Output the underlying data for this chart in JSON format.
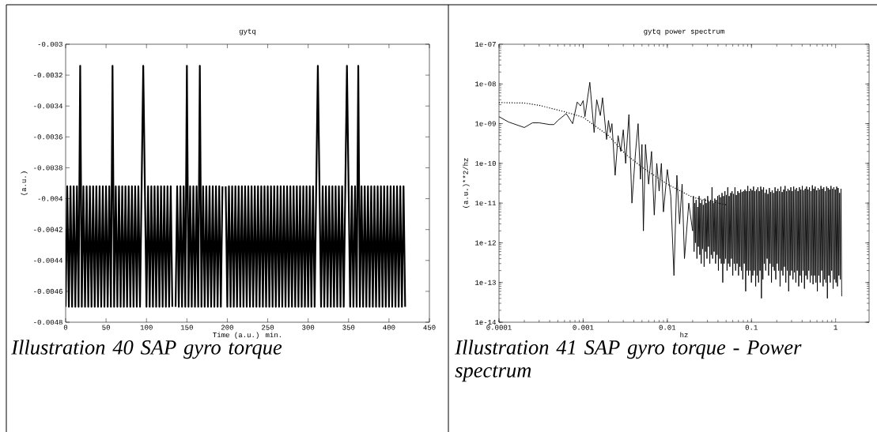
{
  "chart_data": [
    {
      "type": "line",
      "title": "gytq",
      "xlabel": "Time (a.u.) min.",
      "ylabel": "(a.u.)",
      "xlim": [
        0,
        450
      ],
      "xticks": [
        0,
        50,
        100,
        150,
        200,
        250,
        300,
        350,
        400,
        450
      ],
      "ylim": [
        -0.0048,
        -0.003
      ],
      "yticks": [
        -0.0048,
        -0.0046,
        -0.0044,
        -0.0042,
        -0.004,
        -0.0038,
        -0.0036,
        -0.0034,
        -0.0032,
        -0.003
      ],
      "x": [
        0,
        2,
        4,
        6,
        8,
        10,
        12,
        14,
        16,
        18,
        20,
        22,
        24,
        26,
        28,
        30,
        32,
        34,
        36,
        38,
        40,
        42,
        44,
        46,
        48,
        50,
        52,
        54,
        56,
        58,
        60,
        62,
        64,
        66,
        68,
        70,
        72,
        74,
        76,
        78,
        80,
        82,
        84,
        86,
        88,
        90,
        92,
        94,
        96,
        98,
        100,
        102,
        104,
        106,
        108,
        110,
        112,
        114,
        116,
        118,
        120,
        122,
        124,
        126,
        128,
        130,
        132,
        134,
        136,
        138,
        140,
        142,
        144,
        146,
        148,
        150,
        152,
        154,
        156,
        158,
        160,
        162,
        164,
        166,
        168,
        170,
        172,
        174,
        176,
        178,
        180,
        182,
        184,
        186,
        188,
        190,
        192,
        194,
        196,
        198,
        200,
        202,
        204,
        206,
        208,
        210,
        212,
        214,
        216,
        218,
        220,
        222,
        224,
        226,
        228,
        230,
        232,
        234,
        236,
        238,
        240,
        242,
        244,
        246,
        248,
        250,
        252,
        254,
        256,
        258,
        260,
        262,
        264,
        266,
        268,
        270,
        272,
        274,
        276,
        278,
        280,
        282,
        284,
        286,
        288,
        290,
        292,
        294,
        296,
        298,
        300,
        302,
        304,
        306,
        308,
        310,
        312,
        314,
        316,
        318,
        320,
        322,
        324,
        326,
        328,
        330,
        332,
        334,
        336,
        338,
        340,
        342,
        344,
        346,
        348,
        350,
        352,
        354,
        356,
        358,
        360,
        362,
        364,
        366,
        368,
        370,
        372,
        374,
        376,
        378,
        380,
        382,
        384,
        386,
        388,
        390,
        392,
        394,
        396,
        398,
        400,
        402,
        404,
        406,
        408,
        410,
        412,
        414,
        416,
        418,
        420
      ],
      "series": [
        {
          "color": "#000000",
          "values": [
            -0.0047,
            -0.00392,
            -0.0047,
            -0.00392,
            -0.0047,
            -0.00392,
            -0.0047,
            -0.00392,
            -0.0047,
            -0.00314,
            -0.0047,
            -0.00392,
            -0.0047,
            -0.00392,
            -0.0047,
            -0.00392,
            -0.0047,
            -0.00392,
            -0.0047,
            -0.00392,
            -0.0047,
            -0.00392,
            -0.0047,
            -0.00392,
            -0.0047,
            -0.00392,
            -0.0047,
            -0.00392,
            -0.0047,
            -0.00314,
            -0.0047,
            -0.00392,
            -0.0047,
            -0.00392,
            -0.0047,
            -0.00392,
            -0.0047,
            -0.00392,
            -0.0047,
            -0.00392,
            -0.0047,
            -0.00392,
            -0.0047,
            -0.00392,
            -0.0047,
            -0.00392,
            -0.0047,
            -0.00392,
            -0.00314,
            -0.00392,
            -0.0047,
            -0.00392,
            -0.0047,
            -0.00392,
            -0.0047,
            -0.00392,
            -0.0047,
            -0.00392,
            -0.0047,
            -0.00392,
            -0.0047,
            -0.00392,
            -0.0047,
            -0.00392,
            -0.0047,
            -0.00392,
            -0.0047,
            null,
            -0.0047,
            -0.00392,
            -0.0047,
            -0.00392,
            -0.0047,
            -0.00392,
            -0.0047,
            -0.00314,
            -0.0047,
            -0.00392,
            -0.0047,
            -0.00392,
            -0.0047,
            -0.00392,
            -0.0047,
            -0.00314,
            -0.0047,
            -0.00392,
            -0.0047,
            -0.00392,
            -0.0047,
            -0.00392,
            -0.0047,
            -0.00392,
            -0.0047,
            -0.00392,
            -0.0047,
            -0.00392,
            -0.0047,
            -0.00392,
            null,
            -0.00392,
            -0.0047,
            -0.00392,
            -0.0047,
            -0.00392,
            -0.0047,
            -0.00392,
            -0.0047,
            -0.00392,
            -0.0047,
            -0.00392,
            -0.0047,
            -0.00392,
            -0.0047,
            -0.00392,
            -0.0047,
            -0.00392,
            -0.0047,
            -0.00392,
            -0.0047,
            -0.00392,
            -0.0047,
            -0.00392,
            -0.0047,
            -0.00392,
            -0.0047,
            -0.00392,
            -0.0047,
            -0.00392,
            -0.0047,
            -0.00392,
            -0.0047,
            -0.00392,
            -0.0047,
            -0.00392,
            -0.0047,
            -0.00392,
            -0.0047,
            -0.00392,
            -0.0047,
            -0.00392,
            -0.0047,
            -0.00392,
            -0.0047,
            -0.00392,
            -0.0047,
            -0.00392,
            -0.0047,
            -0.00392,
            -0.0047,
            -0.00392,
            -0.0047,
            -0.00392,
            -0.0047,
            -0.00392,
            -0.0047,
            -0.00392,
            -0.00314,
            -0.00392,
            -0.0047,
            -0.00392,
            -0.0047,
            -0.00392,
            -0.0047,
            -0.00392,
            -0.0047,
            -0.00392,
            -0.0047,
            -0.00392,
            -0.0047,
            -0.00392,
            -0.0047,
            -0.00392,
            -0.0047,
            -0.00392,
            -0.00314,
            -0.00392,
            -0.0047,
            -0.00392,
            -0.0047,
            -0.00392,
            -0.0047,
            -0.00314,
            -0.0047,
            -0.00392,
            -0.0047,
            -0.00392,
            -0.0047,
            -0.00392,
            -0.0047,
            -0.00392,
            -0.0047,
            -0.00392,
            -0.0047,
            -0.00392,
            -0.0047,
            -0.00392,
            -0.0047,
            -0.00392,
            -0.0047,
            -0.00392,
            -0.0047,
            -0.00392,
            -0.0047,
            -0.00392,
            -0.0047,
            -0.00392,
            -0.0047,
            -0.00392,
            -0.0047,
            -0.00392,
            -0.0047
          ]
        }
      ],
      "annotations": [
        "Illustration 40 SAP gyro torque"
      ]
    },
    {
      "type": "line",
      "title": "gytq power spectrum",
      "xlabel": "hz",
      "ylabel": "(a.u.)**2/hz",
      "log": "xy",
      "xlim": [
        0.0001,
        2.5
      ],
      "xticks": [
        0.0001,
        0.001,
        0.01,
        0.1,
        1
      ],
      "ylim": [
        1e-14,
        1e-07
      ],
      "yticks": [
        1e-14,
        1e-13,
        1e-12,
        1e-11,
        1e-10,
        1e-09,
        1e-08,
        1e-07
      ],
      "series": [
        {
          "color": "#000000",
          "line_style": "solid",
          "x": [
            0.0001,
            0.00013,
            0.0002,
            0.00025,
            0.0003,
            0.0004,
            0.00045,
            0.0005,
            0.00063,
            0.00075,
            0.00085,
            0.00093,
            0.001,
            0.00105,
            0.0012,
            0.00135,
            0.00145,
            0.0016,
            0.0017,
            0.0019,
            0.002,
            0.0021,
            0.0022,
            0.0024,
            0.0026,
            0.0028,
            0.003,
            0.0032,
            0.0035,
            0.0038,
            0.0042,
            0.0045,
            0.0048,
            0.005,
            0.0052,
            0.0055,
            0.006,
            0.0065,
            0.007,
            0.0075,
            0.008,
            0.0085,
            0.009,
            0.01,
            0.011,
            0.012,
            0.013,
            0.014,
            0.015,
            0.016,
            0.018,
            0.02,
            0.0204,
            0.0208,
            0.0212,
            0.0216,
            0.022,
            0.0225,
            0.023,
            0.0234,
            0.0239,
            0.0243,
            0.0248,
            0.0253,
            0.0258,
            0.0263,
            0.0268,
            0.0274,
            0.0279,
            0.0285,
            0.029,
            0.0296,
            0.0302,
            0.0308,
            0.0314,
            0.032,
            0.0327,
            0.0333,
            0.034,
            0.0346,
            0.0353,
            0.036,
            0.0367,
            0.0375,
            0.0382,
            0.039,
            0.0397,
            0.0405,
            0.0413,
            0.0421,
            0.043,
            0.0438,
            0.0447,
            0.0456,
            0.0465,
            0.0474,
            0.0484,
            0.0493,
            0.0503,
            0.0513,
            0.0523,
            0.0533,
            0.0544,
            0.0554,
            0.0566,
            0.0577,
            0.0588,
            0.06,
            0.0612,
            0.0624,
            0.0637,
            0.0649,
            0.0662,
            0.0675,
            0.0688,
            0.0702,
            0.0716,
            0.073,
            0.0745,
            0.0759,
            0.0774,
            0.0789,
            0.0805,
            0.0821,
            0.0837,
            0.0854,
            0.0871,
            0.0888,
            0.0905,
            0.0923,
            0.0941,
            0.096,
            0.0979,
            0.0999,
            0.1019,
            0.1039,
            0.1059,
            0.108,
            0.1101,
            0.1123,
            0.1145,
            0.1168,
            0.1191,
            0.1215,
            0.1239,
            0.1264,
            0.1289,
            0.1314,
            0.134,
            0.1367,
            0.1394,
            0.1421,
            0.1449,
            0.1478,
            0.1508,
            0.1538,
            0.1568,
            0.1599,
            0.1631,
            0.1663,
            0.1696,
            0.173,
            0.1764,
            0.1799,
            0.1835,
            0.1871,
            0.1908,
            0.1946,
            0.1984,
            0.2023,
            0.2063,
            0.2104,
            0.2146,
            0.2189,
            0.2232,
            0.2276,
            0.2321,
            0.2367,
            0.2414,
            0.2462,
            0.2511,
            0.2561,
            0.2612,
            0.2663,
            0.2716,
            0.2769,
            0.2824,
            0.288,
            0.2938,
            0.2996,
            0.3055,
            0.3115,
            0.3177,
            0.324,
            0.3305,
            0.337,
            0.3437,
            0.3504,
            0.3574,
            0.3645,
            0.3717,
            0.379,
            0.3866,
            0.3942,
            0.4021,
            0.41,
            0.4182,
            0.4264,
            0.4349,
            0.4434,
            0.4523,
            0.4612,
            0.4704,
            0.4796,
            0.4892,
            0.4988,
            0.5088,
            0.5188,
            0.5291,
            0.5395,
            0.5503,
            0.5611,
            0.5723,
            0.5835,
            0.5952,
            0.6069,
            0.619,
            0.6312,
            0.6438,
            0.6564,
            0.6695,
            0.6827,
            0.6963,
            0.71,
            0.7242,
            0.7384,
            0.7531,
            0.7679,
            0.7832,
            0.7986,
            0.8146,
            0.8306,
            0.8472,
            0.8638,
            0.8811,
            0.8984,
            0.9163,
            0.9343,
            0.953,
            0.9717,
            0.9911,
            1.0105,
            1.0307,
            1.051,
            1.072,
            1.093,
            1.115,
            1.137,
            1.159,
            1.182
          ],
          "values": [
            1.5e-09,
            1.1e-09,
            8e-10,
            1.05e-09,
            1.05e-09,
            9.5e-10,
            9.5e-10,
            1.2e-09,
            1.8e-09,
            1e-09,
            3.5e-09,
            2.8e-09,
            3.8e-09,
            1.5e-09,
            1.1e-08,
            6e-10,
            4e-09,
            1.6e-09,
            4.5e-09,
            4e-10,
            1.2e-09,
            6e-10,
            1e-09,
            5e-11,
            5e-10,
            2e-10,
            7e-10,
            1e-10,
            1.7e-09,
            1e-11,
            2e-10,
            1e-09,
            4e-11,
            3e-10,
            2e-12,
            3e-10,
            3e-11,
            2e-10,
            5e-12,
            1e-10,
            2e-11,
            1e-10,
            6e-12,
            7e-11,
            1.5e-11,
            1.5e-13,
            5e-11,
            3e-12,
            3e-11,
            4e-13,
            1e-11,
            2e-12,
            1.5e-11,
            6e-13,
            1e-11,
            1e-12,
            1.2e-11,
            4e-13,
            8e-12,
            8e-13,
            1.5e-11,
            5e-13,
            1e-11,
            3e-13,
            1.2e-11,
            7e-13,
            9e-12,
            2.5e-13,
            1.3e-11,
            6e-13,
            1e-11,
            4e-13,
            1.5e-11,
            8e-13,
            1.1e-11,
            3e-13,
            1.2e-11,
            5e-13,
            2.5e-11,
            4e-13,
            1e-11,
            6e-13,
            1.3e-11,
            3e-13,
            1.2e-11,
            5e-13,
            1.5e-11,
            2e-13,
            1.6e-11,
            4e-13,
            1.4e-11,
            3e-13,
            1.8e-11,
            1e-13,
            1.5e-11,
            3e-13,
            2e-11,
            4e-13,
            1.6e-11,
            2e-13,
            2.5e-11,
            3e-13,
            1.5e-11,
            2.5e-13,
            1.8e-11,
            4e-13,
            2e-11,
            1.5e-13,
            1.7e-11,
            3e-13,
            2.5e-11,
            2e-13,
            1.6e-11,
            3e-13,
            2e-11,
            1.5e-13,
            1.8e-11,
            2.5e-13,
            2.2e-11,
            2e-13,
            1.9e-11,
            1.2e-13,
            2e-11,
            3e-13,
            2.2e-11,
            6e-14,
            2e-11,
            2e-13,
            2.7e-11,
            1.5e-13,
            2e-11,
            2e-13,
            2.3e-11,
            1e-13,
            2.1e-11,
            1.5e-13,
            2.6e-11,
            2e-13,
            2e-11,
            8e-14,
            2.2e-11,
            1.5e-13,
            2.5e-11,
            1e-13,
            2e-11,
            2e-13,
            2.6e-11,
            4e-14,
            2.2e-11,
            1.2e-13,
            2.5e-11,
            3e-13,
            1.8e-11,
            2e-13,
            2.2e-11,
            4e-13,
            1.7e-11,
            1.5e-13,
            2.4e-11,
            3e-13,
            1.9e-11,
            1e-13,
            2.1e-11,
            2.5e-13,
            1.8e-11,
            2e-13,
            2.5e-11,
            1.2e-13,
            2e-11,
            3e-13,
            2.3e-11,
            2e-13,
            2e-11,
            8e-14,
            2.6e-11,
            2e-13,
            1.9e-11,
            1.5e-13,
            2.2e-11,
            2.5e-13,
            2.7e-11,
            1e-13,
            2e-11,
            2e-13,
            2.3e-11,
            6e-14,
            2.1e-11,
            1.5e-13,
            2.5e-11,
            2e-13,
            2e-11,
            1.2e-13,
            2.6e-11,
            1.8e-13,
            2.2e-11,
            1e-13,
            2.4e-11,
            2e-13,
            2e-11,
            8e-14,
            2.5e-11,
            1.5e-13,
            2.2e-11,
            1e-13,
            2.7e-11,
            2e-13,
            2.1e-11,
            7e-14,
            2.3e-11,
            1.5e-13,
            2.6e-11,
            1.2e-13,
            2.2e-11,
            2e-13,
            2.5e-11,
            1e-13,
            2e-11,
            1.5e-13,
            2.8e-11,
            9e-14,
            2.3e-11,
            1.5e-13,
            2.6e-11,
            1e-13,
            2.1e-11,
            6e-14,
            2.4e-11,
            1.5e-13,
            2.2e-11,
            1e-13,
            2.7e-11,
            2e-13,
            2.3e-11,
            8e-14,
            2.5e-11,
            1.2e-13,
            2e-11,
            1e-13,
            2.6e-11,
            4e-14,
            2.4e-11,
            1.5e-13,
            2.2e-11,
            1e-13,
            2.7e-11,
            2e-13,
            2.3e-11,
            7e-14,
            2.5e-11,
            1.2e-13,
            2.2e-11,
            1e-13,
            2.6e-11,
            8e-14,
            2.4e-11,
            1.5e-13,
            1.8e-11,
            1.2e-13,
            2.3e-11,
            4.5e-14
          ]
        },
        {
          "color": "#000000",
          "line_style": "dotted",
          "x": [
            0.0001,
            0.0002,
            0.0003,
            0.0006,
            0.001,
            0.002,
            0.0032,
            0.005,
            0.01,
            0.02,
            0.05
          ],
          "values": [
            3.4e-09,
            3.3e-09,
            2.9e-09,
            2e-09,
            1.45e-09,
            5e-10,
            1.7e-10,
            8e-11,
            3e-11,
            1.4e-11,
            9e-12
          ]
        }
      ],
      "annotations": [
        "Illustration 41 SAP gyro torque - Power spectrum"
      ]
    }
  ]
}
